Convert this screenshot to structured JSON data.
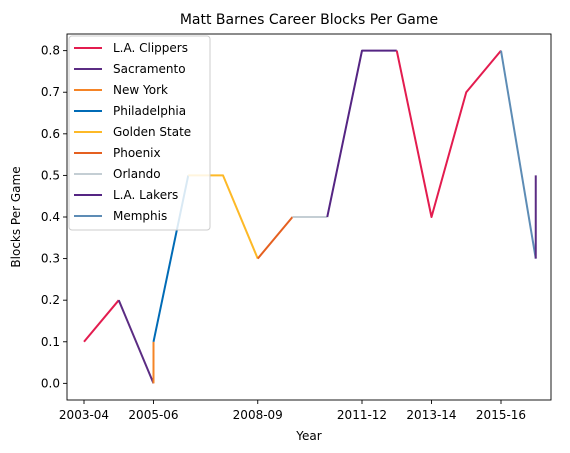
{
  "chart_data": {
    "type": "line",
    "title": "Matt Barnes Career Blocks Per Game",
    "xlabel": "Year",
    "ylabel": "Blocks Per Game",
    "ylim": [
      -0.04,
      0.84
    ],
    "yticks": [
      0.0,
      0.1,
      0.2,
      0.3,
      0.4,
      0.5,
      0.6,
      0.7,
      0.8
    ],
    "ytick_labels": [
      "0.0",
      "0.1",
      "0.2",
      "0.3",
      "0.4",
      "0.5",
      "0.6",
      "0.7",
      "0.8"
    ],
    "x_categories": [
      "2003-04",
      "2004-05",
      "2005-06",
      "2006-07",
      "2007-08",
      "2008-09",
      "2009-10",
      "2010-11",
      "2011-12",
      "2012-13",
      "2013-14",
      "2014-15",
      "2015-16",
      "2016-17"
    ],
    "xticks": [
      "2003-04",
      "2005-06",
      "2008-09",
      "2011-12",
      "2013-14",
      "2015-16"
    ],
    "grid": false,
    "legend_position": "top-left",
    "series": [
      {
        "name": "L.A. Clippers",
        "color": "#e31c4f",
        "points": [
          {
            "x": "2003-04",
            "y": 0.1
          },
          {
            "x": "2004-05",
            "y": 0.2
          }
        ]
      },
      {
        "name": "Sacramento",
        "color": "#5b2c83",
        "points": [
          {
            "x": "2004-05",
            "y": 0.2
          },
          {
            "x": "2005-06",
            "y": 0.0
          }
        ]
      },
      {
        "name": "New York",
        "color": "#f58426",
        "points": [
          {
            "x": "2005-06",
            "y": 0.0
          },
          {
            "x": "2005-06",
            "y": 0.1
          }
        ]
      },
      {
        "name": "Philadelphia",
        "color": "#006bb6",
        "points": [
          {
            "x": "2005-06",
            "y": 0.1
          },
          {
            "x": "2006-07",
            "y": 0.5
          }
        ]
      },
      {
        "name": "Golden State",
        "color": "#fdb927",
        "points": [
          {
            "x": "2006-07",
            "y": 0.5
          },
          {
            "x": "2007-08",
            "y": 0.5
          },
          {
            "x": "2008-09",
            "y": 0.3
          }
        ]
      },
      {
        "name": "Phoenix",
        "color": "#e56020",
        "points": [
          {
            "x": "2008-09",
            "y": 0.3
          },
          {
            "x": "2009-10",
            "y": 0.4
          }
        ]
      },
      {
        "name": "Orlando",
        "color": "#c4ced4",
        "points": [
          {
            "x": "2009-10",
            "y": 0.4
          },
          {
            "x": "2010-11",
            "y": 0.4
          }
        ]
      },
      {
        "name": "L.A. Lakers",
        "color": "#552583",
        "points": [
          {
            "x": "2010-11",
            "y": 0.4
          },
          {
            "x": "2011-12",
            "y": 0.8
          },
          {
            "x": "2012-13",
            "y": 0.8
          }
        ]
      },
      {
        "name": "L.A. Clippers",
        "color": "#e31c4f",
        "legend": false,
        "points": [
          {
            "x": "2012-13",
            "y": 0.8
          },
          {
            "x": "2013-14",
            "y": 0.4
          },
          {
            "x": "2014-15",
            "y": 0.7
          },
          {
            "x": "2015-16",
            "y": 0.8
          }
        ]
      },
      {
        "name": "Memphis",
        "color": "#5d8cb5",
        "points": [
          {
            "x": "2015-16",
            "y": 0.8
          },
          {
            "x": "2016-17",
            "y": 0.3
          }
        ]
      },
      {
        "name": "Sacramento",
        "color": "#5b2c83",
        "legend": false,
        "points": [
          {
            "x": "2016-17",
            "y": 0.3
          },
          {
            "x": "2016-17",
            "y": 0.5
          }
        ]
      }
    ]
  }
}
